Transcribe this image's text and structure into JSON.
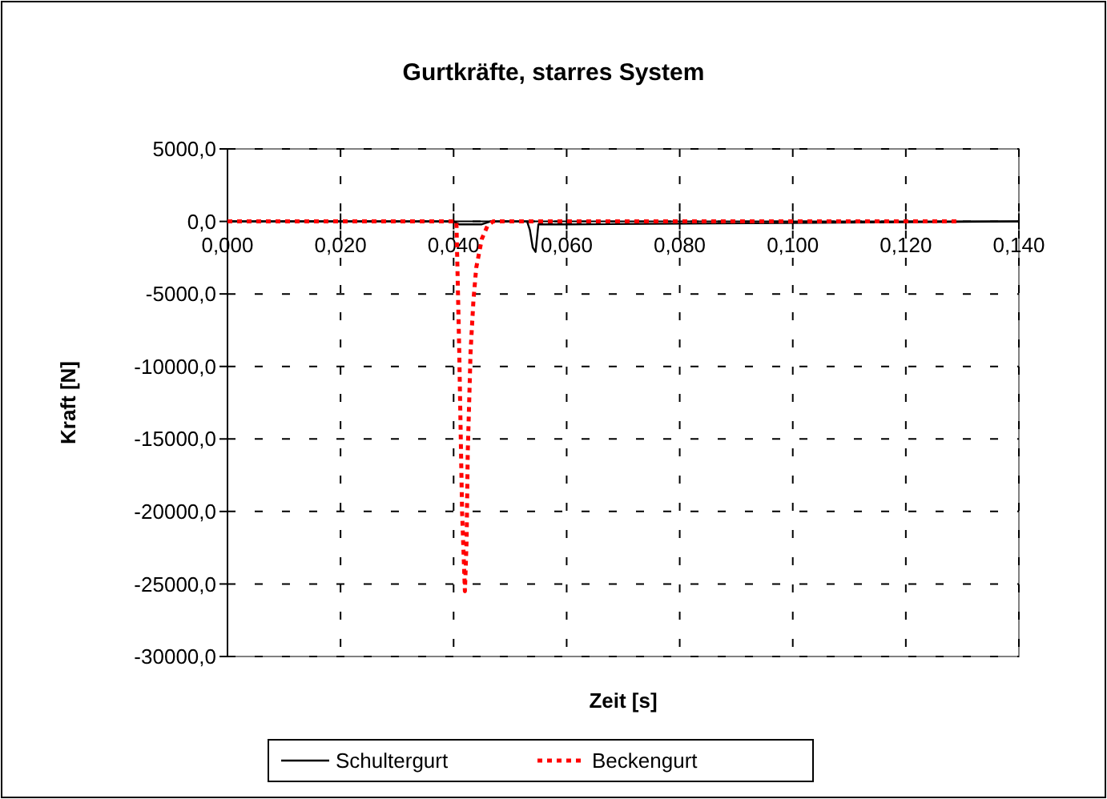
{
  "chart_data": {
    "type": "line",
    "title": "Gurtkräfte, starres System",
    "xlabel": "Zeit [s]",
    "ylabel": "Kraft [N]",
    "xlim": [
      0,
      0.14
    ],
    "xticks": [
      {
        "value": 0,
        "label": "0,000"
      },
      {
        "value": 0.02,
        "label": "0,020"
      },
      {
        "value": 0.04,
        "label": "0,040"
      },
      {
        "value": 0.06,
        "label": "0,060"
      },
      {
        "value": 0.08,
        "label": "0,080"
      },
      {
        "value": 0.1,
        "label": "0,100"
      },
      {
        "value": 0.12,
        "label": "0,120"
      },
      {
        "value": 0.14,
        "label": "0,140"
      }
    ],
    "ylim": [
      -30000,
      5000
    ],
    "yticks": [
      {
        "value": -30000,
        "label": "-30000,0"
      },
      {
        "value": -25000,
        "label": "-25000,0"
      },
      {
        "value": -20000,
        "label": "-20000,0"
      },
      {
        "value": -15000,
        "label": "-15000,0"
      },
      {
        "value": -10000,
        "label": "-10000,0"
      },
      {
        "value": -5000,
        "label": "-5000,0"
      },
      {
        "value": 0,
        "label": "0,0"
      },
      {
        "value": 5000,
        "label": "5000,0"
      }
    ],
    "grid": true,
    "legend": "bottom",
    "series": [
      {
        "name": "Schultergurt",
        "color": "#000000",
        "line_style": "solid",
        "x": [
          0,
          0.04,
          0.041,
          0.045,
          0.0465,
          0.053,
          0.0535,
          0.054,
          0.0545,
          0.055,
          0.06,
          0.14
        ],
        "values": [
          0,
          0,
          -200,
          -200,
          0,
          0,
          -600,
          -1800,
          -2100,
          -200,
          -200,
          0
        ]
      },
      {
        "name": "Beckengurt",
        "color": "#ff0000",
        "line_style": "dotted",
        "x": [
          0,
          0.0405,
          0.041,
          0.0415,
          0.042,
          0.0423,
          0.0425,
          0.043,
          0.0435,
          0.044,
          0.045,
          0.046,
          0.047,
          0.129
        ],
        "values": [
          0,
          0,
          -9000,
          -20000,
          -25500,
          -22000,
          -16000,
          -9000,
          -5500,
          -3200,
          -1200,
          -300,
          0,
          0
        ]
      }
    ]
  }
}
